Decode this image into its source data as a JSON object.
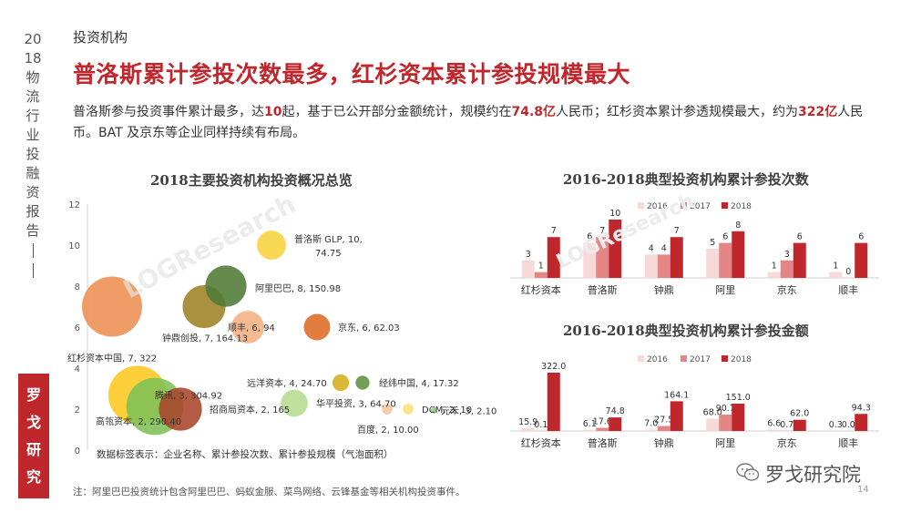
{
  "sidebar": {
    "chars": [
      "20",
      "18",
      "物",
      "流",
      "行",
      "业",
      "投",
      "融",
      "资",
      "报",
      "告"
    ],
    "badge": [
      "罗",
      "戈",
      "研",
      "究"
    ]
  },
  "section_label": "投资机构",
  "headline": "普洛斯累计参投次数最多，红杉资本累计参投规模最大",
  "intro": {
    "p1": "普洛斯参与投资事件累计最多，达",
    "v1": "10",
    "p2": "起，基于已公开部分金额统计，规模约在",
    "v2": "74.8亿",
    "p3": "人民币；红杉资本累计参透规模最大，约为",
    "v3": "322亿",
    "p4": "人民币。BAT 及京东等企业同样持续有布局。"
  },
  "chart_data": [
    {
      "type": "scatter",
      "title": "2018主要投资机构投资概况总览",
      "ylim": [
        0,
        12
      ],
      "yticks": [
        0,
        2,
        4,
        6,
        8,
        10,
        12
      ],
      "note": "数据标签表示：企业名称、累计参投次数、累计参投规模（气泡面积）",
      "points": [
        {
          "name": "普洛斯 GLP",
          "count": 10,
          "amount": 74.75,
          "label": "普洛斯 GLP, 10,",
          "label2": "74.75",
          "color": "#f7d33c"
        },
        {
          "name": "阿里巴巴",
          "count": 8,
          "amount": 150.98,
          "label": "阿里巴巴, 8, 150.98",
          "color": "#4f7a35"
        },
        {
          "name": "红杉资本中国",
          "count": 7,
          "amount": 322,
          "label": "红杉资本中国, 7, 322",
          "color": "#ee8e52"
        },
        {
          "name": "钟鼎创投",
          "count": 7,
          "amount": 164.13,
          "label": "钟鼎创投, 7, 164.13",
          "color": "#9d8226"
        },
        {
          "name": "顺丰",
          "count": 6,
          "amount": 94,
          "label": "顺丰, 6, 94",
          "color": "#f5b184"
        },
        {
          "name": "京东",
          "count": 6,
          "amount": 62.03,
          "label": "京东, 6, 62.03",
          "color": "#df6b24"
        },
        {
          "name": "腾讯",
          "count": 3,
          "amount": 304.92,
          "label": "腾讯, 3, 304.92",
          "color": "#fcc820"
        },
        {
          "name": "远洋资本",
          "count": 4,
          "amount": 24.7,
          "label": "远洋资本, 4, 24.70",
          "color": "#d4ad1b"
        },
        {
          "name": "经纬中国",
          "count": 4,
          "amount": 17.32,
          "label": "经纬中国, 4, 17.32",
          "color": "#5f9140"
        },
        {
          "name": "华平投资",
          "count": 3,
          "amount": 64.7,
          "label": "华平投资, 3, 64.70",
          "color": "#b5dc8f"
        },
        {
          "name": "元禾",
          "count": 3,
          "amount": 2.1,
          "label": "元禾, 3, 2.10",
          "color": "#92cf74"
        },
        {
          "name": "高瓴资本",
          "count": 2,
          "amount": 290.4,
          "label": "高瓴资本, 2, 290.40",
          "color": "#7dc155"
        },
        {
          "name": "招商局资本",
          "count": 2,
          "amount": 165,
          "label": "招商局资本, 2, 165",
          "color": "#a9442a"
        },
        {
          "name": "DCM",
          "count": 2,
          "amount": 10,
          "label": "DCM, 2, 10",
          "color": "#fde07b"
        },
        {
          "name": "百度",
          "count": 2,
          "amount": 10,
          "label": "百度, 2, 10.00",
          "color": "#f7c49f"
        }
      ]
    },
    {
      "type": "bar",
      "title": "2016-2018典型投资机构累计参投次数",
      "categories": [
        "红杉资本",
        "普洛斯",
        "钟鼎",
        "阿里",
        "京东",
        "顺丰"
      ],
      "series": [
        {
          "name": "2016",
          "color": "#f7d9d8",
          "values": [
            3,
            6,
            4,
            5,
            1,
            1
          ]
        },
        {
          "name": "2017",
          "color": "#e58585",
          "values": [
            1,
            7,
            4,
            6,
            3,
            0
          ]
        },
        {
          "name": "2018",
          "color": "#c0272d",
          "values": [
            7,
            10,
            7,
            8,
            6,
            6
          ]
        }
      ],
      "ylim": [
        0,
        10
      ]
    },
    {
      "type": "bar",
      "title": "2016-2018典型投资机构累计参投金额",
      "categories": [
        "红杉资本",
        "普洛斯",
        "钟鼎",
        "阿里",
        "京东",
        "顺丰"
      ],
      "series": [
        {
          "name": "2016",
          "color": "#f7d9d8",
          "values": [
            15.9,
            6.1,
            7.0,
            68.0,
            6.6,
            0.3
          ]
        },
        {
          "name": "2017",
          "color": "#e58585",
          "values": [
            0.1,
            17.6,
            27.5,
            90.7,
            0.7,
            0.0
          ]
        },
        {
          "name": "2018",
          "color": "#c0272d",
          "values": [
            322.0,
            74.8,
            164.1,
            151.0,
            62.0,
            94.3
          ]
        }
      ],
      "ylim": [
        0,
        322
      ]
    }
  ],
  "watermark": "LOGResearch",
  "footnote": "注：阿里巴巴投资统计包含阿里巴巴、蚂蚁金服、菜鸟网络、云锋基金等相关机构投资事件。",
  "wechat_label": "罗戈研究院",
  "page_number": "14"
}
